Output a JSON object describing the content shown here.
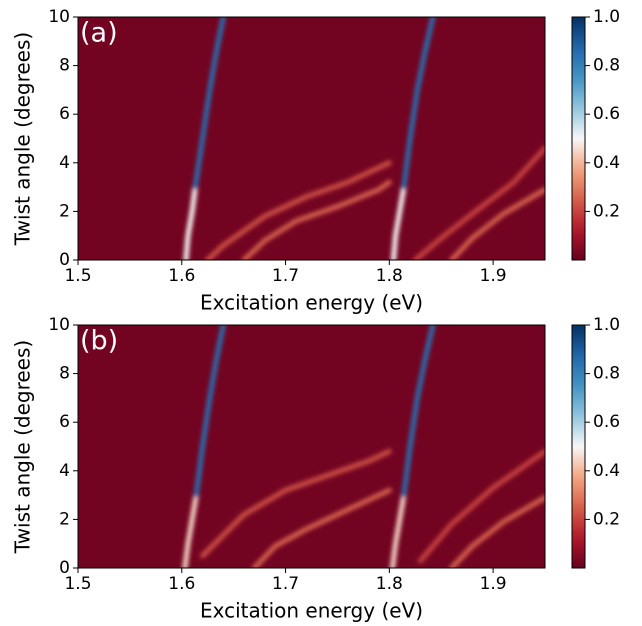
{
  "chart_data": [
    {
      "type": "heatmap",
      "annotation": "(a)",
      "xlabel": "Excitation energy (eV)",
      "ylabel": "Twist angle (degrees)",
      "xlim": [
        1.5,
        1.95
      ],
      "ylim": [
        0,
        10
      ],
      "xticks": [
        1.5,
        1.6,
        1.7,
        1.8,
        1.9
      ],
      "yticks": [
        0,
        2,
        4,
        6,
        8,
        10
      ],
      "clim": [
        0,
        1
      ],
      "cticks": [
        0.2,
        0.4,
        0.6,
        0.8,
        {
          "value": 1,
          "label": "1.0"
        }
      ],
      "colormap": "RdBu",
      "background": 0.02,
      "ridges": [
        {
          "x": [
            1.604,
            1.606,
            1.61,
            1.613
          ],
          "y": [
            0,
            1,
            2,
            3
          ],
          "value": 0.5
        },
        {
          "x": [
            1.613,
            1.62,
            1.627,
            1.633,
            1.64
          ],
          "y": [
            3,
            5,
            7,
            8.5,
            10
          ],
          "value": 0.85
        },
        {
          "x": [
            1.804,
            1.806,
            1.81,
            1.814
          ],
          "y": [
            0,
            1,
            2,
            3
          ],
          "value": 0.5
        },
        {
          "x": [
            1.814,
            1.82,
            1.827,
            1.834,
            1.842
          ],
          "y": [
            3,
            5,
            7,
            8.5,
            10
          ],
          "value": 0.85
        },
        {
          "x": [
            1.625,
            1.64,
            1.68,
            1.72,
            1.76,
            1.8
          ],
          "y": [
            0,
            0.6,
            1.8,
            2.6,
            3.2,
            4
          ],
          "value": 0.22
        },
        {
          "x": [
            1.66,
            1.68,
            1.71,
            1.75,
            1.79,
            1.8
          ],
          "y": [
            0,
            0.8,
            1.6,
            2.2,
            2.9,
            3.2
          ],
          "value": 0.25
        },
        {
          "x": [
            1.825,
            1.85,
            1.88,
            1.92,
            1.95
          ],
          "y": [
            0,
            0.9,
            1.9,
            3.2,
            4.6
          ],
          "value": 0.2
        },
        {
          "x": [
            1.86,
            1.88,
            1.91,
            1.95
          ],
          "y": [
            0,
            0.9,
            1.9,
            2.9
          ],
          "value": 0.25
        }
      ]
    },
    {
      "type": "heatmap",
      "annotation": "(b)",
      "xlabel": "Excitation energy (eV)",
      "ylabel": "Twist angle (degrees)",
      "xlim": [
        1.5,
        1.95
      ],
      "ylim": [
        0,
        10
      ],
      "xticks": [
        1.5,
        1.6,
        1.7,
        1.8,
        1.9
      ],
      "yticks": [
        0,
        2,
        4,
        6,
        8,
        10
      ],
      "clim": [
        0,
        1
      ],
      "cticks": [
        0.2,
        0.4,
        0.6,
        0.8,
        {
          "value": 1,
          "label": "1.0"
        }
      ],
      "colormap": "RdBu",
      "background": 0.02,
      "ridges": [
        {
          "x": [
            1.603,
            1.606,
            1.61,
            1.614
          ],
          "y": [
            0,
            1,
            2,
            3
          ],
          "value": 0.45
        },
        {
          "x": [
            1.614,
            1.62,
            1.627,
            1.633,
            1.64
          ],
          "y": [
            3,
            5,
            7,
            8.5,
            10
          ],
          "value": 0.85
        },
        {
          "x": [
            1.803,
            1.806,
            1.81,
            1.814
          ],
          "y": [
            0,
            1,
            2,
            3
          ],
          "value": 0.45
        },
        {
          "x": [
            1.814,
            1.82,
            1.827,
            1.834,
            1.842
          ],
          "y": [
            3,
            5,
            7,
            8.5,
            10
          ],
          "value": 0.85
        },
        {
          "x": [
            1.62,
            1.66,
            1.7,
            1.74,
            1.78,
            1.8
          ],
          "y": [
            0.5,
            2.2,
            3.2,
            3.8,
            4.4,
            4.8
          ],
          "value": 0.22
        },
        {
          "x": [
            1.67,
            1.69,
            1.72,
            1.76,
            1.8
          ],
          "y": [
            0,
            0.9,
            1.6,
            2.4,
            3.2
          ],
          "value": 0.25
        },
        {
          "x": [
            1.83,
            1.86,
            1.9,
            1.95
          ],
          "y": [
            0.3,
            1.8,
            3.3,
            4.8
          ],
          "value": 0.2
        },
        {
          "x": [
            1.86,
            1.88,
            1.91,
            1.95
          ],
          "y": [
            0,
            0.9,
            1.9,
            2.9
          ],
          "value": 0.25
        }
      ]
    }
  ]
}
